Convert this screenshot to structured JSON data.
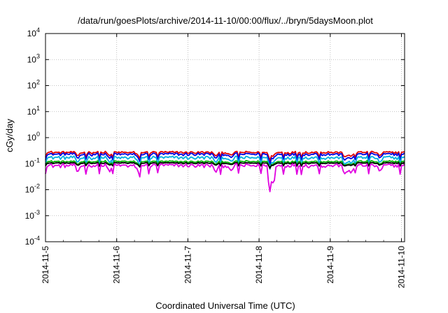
{
  "chart_data": {
    "type": "line",
    "title": "/data/run/goesPlots/archive/2014-11-10/00:00/flux/../bryn/5daysMoon.plot",
    "xlabel": "Coordinated Universal Time (UTC)",
    "ylabel": "cGy/day",
    "yscale": "log",
    "ylim": [
      0.0001,
      10000
    ],
    "xlim": [
      "2014-11-05",
      "2014-11-10 00:30"
    ],
    "y_ticks": [
      {
        "base": "10",
        "exp": "-4",
        "value": 0.0001
      },
      {
        "base": "10",
        "exp": "-3",
        "value": 0.001
      },
      {
        "base": "10",
        "exp": "-2",
        "value": 0.01
      },
      {
        "base": "10",
        "exp": "-1",
        "value": 0.1
      },
      {
        "base": "10",
        "exp": "0",
        "value": 1
      },
      {
        "base": "10",
        "exp": "1",
        "value": 10
      },
      {
        "base": "10",
        "exp": "2",
        "value": 100
      },
      {
        "base": "10",
        "exp": "3",
        "value": 1000
      },
      {
        "base": "10",
        "exp": "4",
        "value": 10000
      }
    ],
    "x_ticks": [
      "2014-11-5",
      "2014-11-6",
      "2014-11-7",
      "2014-11-8",
      "2014-11-9",
      "2014-11-10"
    ],
    "grid": true,
    "series": [
      {
        "color": "#e00000",
        "level": 0.27,
        "jitter": 0.1,
        "dip_scale": 0.6
      },
      {
        "color": "#0000e0",
        "level": 0.23,
        "jitter": 0.12,
        "dip_scale": 0.7
      },
      {
        "color": "#00b0e0",
        "level": 0.17,
        "jitter": 0.14,
        "dip_scale": 0.8
      },
      {
        "color": "#00b000",
        "level": 0.12,
        "jitter": 0.08,
        "dip_scale": 0.5
      },
      {
        "color": "#000000",
        "level": 0.105,
        "jitter": 0.06,
        "dip_scale": 0.4
      },
      {
        "color": "#e000e0",
        "level": 0.085,
        "jitter": 0.16,
        "dip_scale": 1.0
      }
    ]
  }
}
